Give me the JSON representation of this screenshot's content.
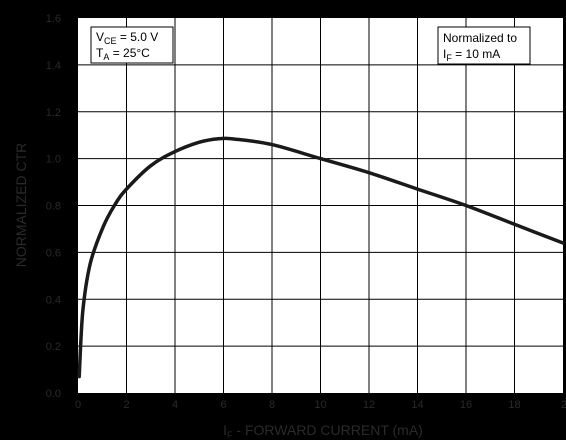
{
  "chart_data": {
    "type": "line",
    "xlabel_parts": {
      "prefix": "I",
      "sub": "F",
      "rest": " - FORWARD CURRENT (mA)"
    },
    "ylabel": "NORMALIZED CTR",
    "xlim": [
      0,
      20
    ],
    "ylim": [
      0,
      1.6
    ],
    "x_ticks": [
      "0",
      "2",
      "4",
      "6",
      "8",
      "10",
      "12",
      "14",
      "16",
      "18",
      "20"
    ],
    "y_ticks": [
      "0.0",
      "0.2",
      "0.4",
      "0.6",
      "0.8",
      "1.0",
      "1.2",
      "1.4",
      "1.6"
    ],
    "grid": true,
    "colors": {
      "plot_bg": "#ffffff",
      "curve": "#1a1a1a",
      "grid": "#000000",
      "outer_bg": "#000000"
    },
    "series": [
      {
        "x": [
          0.05,
          0.2,
          0.5,
          1.0,
          1.5,
          2.0,
          3.0,
          4.0,
          5.0,
          5.8,
          6.5,
          8.0,
          10.0,
          12.0,
          14.0,
          16.0,
          18.0,
          20.0
        ],
        "y": [
          0.07,
          0.35,
          0.55,
          0.7,
          0.8,
          0.87,
          0.97,
          1.03,
          1.07,
          1.085,
          1.083,
          1.06,
          1.0,
          0.94,
          0.87,
          0.8,
          0.72,
          0.64
        ]
      }
    ],
    "annotations": {
      "conditions": {
        "line1_prefix": "V",
        "line1_sub": "CE",
        "line1_rest": " = 5.0 V",
        "line2_prefix": "T",
        "line2_sub": "A",
        "line2_rest": " = 25°C"
      },
      "normalization": {
        "line1": "Normalized to",
        "line2_prefix": "I",
        "line2_sub": "F",
        "line2_rest": " = 10 mA"
      }
    }
  }
}
